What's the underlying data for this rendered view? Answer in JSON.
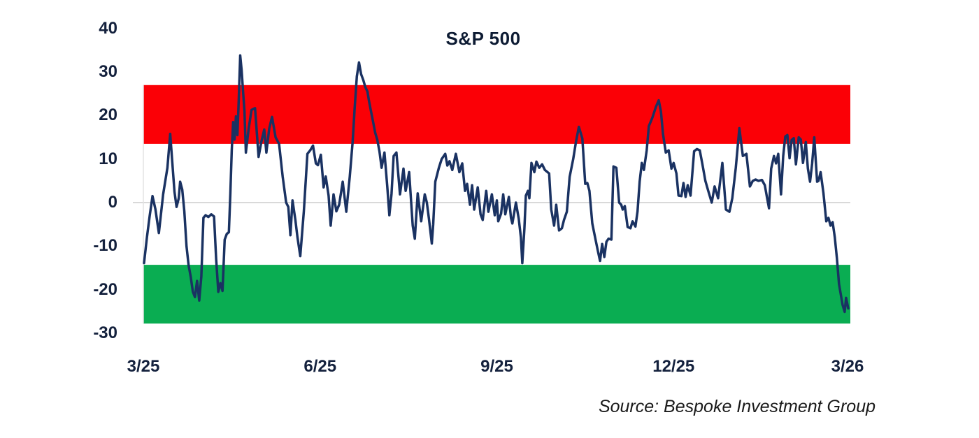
{
  "chart": {
    "title": "S&P 500",
    "source": "Source: Bespoke Investment Group"
  },
  "chart_data": {
    "type": "line",
    "title": "S&P 500",
    "x_axis": {
      "tick_labels": [
        "3/25",
        "6/25",
        "9/25",
        "12/25",
        "3/26"
      ],
      "tick_positions": [
        0,
        0.25,
        0.5,
        0.75,
        0.996
      ]
    },
    "y_axis": {
      "ticks": [
        40,
        30,
        20,
        10,
        0,
        -10,
        -20,
        -30
      ],
      "ylim": [
        -30,
        40
      ]
    },
    "bands": [
      {
        "name": "upper-red-band",
        "from": 13.5,
        "to": 27.0,
        "color": "#fb0006"
      },
      {
        "name": "lower-green-band",
        "from": -27.8,
        "to": -14.3,
        "color": "#0aad52"
      }
    ],
    "gridlines": [
      0
    ],
    "gridline_color": "#d9d9d9",
    "axis_line_color": "#e4e4e4",
    "line_color": "#1a3262",
    "tick_text_color": "#14213d",
    "series": [
      {
        "name": "S&P 500",
        "x_format": "fraction_of_axis_0_to_1",
        "points": [
          [
            0.001,
            -13.9
          ],
          [
            0.005,
            -8.0
          ],
          [
            0.009,
            -3.0
          ],
          [
            0.013,
            1.5
          ],
          [
            0.017,
            -1.5
          ],
          [
            0.022,
            -7.0
          ],
          [
            0.028,
            1.9
          ],
          [
            0.034,
            8.0
          ],
          [
            0.038,
            15.8
          ],
          [
            0.041,
            9.0
          ],
          [
            0.044,
            2.5
          ],
          [
            0.047,
            -1.0
          ],
          [
            0.05,
            1.0
          ],
          [
            0.052,
            4.8
          ],
          [
            0.055,
            3.0
          ],
          [
            0.058,
            -2.0
          ],
          [
            0.061,
            -10.0
          ],
          [
            0.064,
            -14.4
          ],
          [
            0.067,
            -17.0
          ],
          [
            0.07,
            -20.5
          ],
          [
            0.073,
            -21.7
          ],
          [
            0.076,
            -18.0
          ],
          [
            0.079,
            -22.5
          ],
          [
            0.082,
            -17.0
          ],
          [
            0.085,
            -3.5
          ],
          [
            0.088,
            -2.9
          ],
          [
            0.092,
            -3.3
          ],
          [
            0.096,
            -2.7
          ],
          [
            0.1,
            -3.2
          ],
          [
            0.103,
            -13.0
          ],
          [
            0.106,
            -20.5
          ],
          [
            0.109,
            -18.5
          ],
          [
            0.112,
            -20.3
          ],
          [
            0.115,
            -8.5
          ],
          [
            0.118,
            -7.2
          ],
          [
            0.121,
            -6.8
          ],
          [
            0.123,
            2.0
          ],
          [
            0.125,
            12.0
          ],
          [
            0.127,
            18.5
          ],
          [
            0.129,
            14.5
          ],
          [
            0.131,
            19.8
          ],
          [
            0.133,
            15.5
          ],
          [
            0.135,
            24.0
          ],
          [
            0.137,
            33.8
          ],
          [
            0.139,
            30.5
          ],
          [
            0.141,
            25.5
          ],
          [
            0.143,
            21.0
          ],
          [
            0.145,
            11.5
          ],
          [
            0.149,
            17.0
          ],
          [
            0.153,
            21.3
          ],
          [
            0.158,
            21.7
          ],
          [
            0.163,
            10.5
          ],
          [
            0.167,
            14.0
          ],
          [
            0.171,
            16.8
          ],
          [
            0.174,
            11.5
          ],
          [
            0.178,
            17.0
          ],
          [
            0.182,
            19.7
          ],
          [
            0.187,
            15.0
          ],
          [
            0.192,
            13.5
          ],
          [
            0.197,
            6.0
          ],
          [
            0.202,
            0.0
          ],
          [
            0.205,
            -1.0
          ],
          [
            0.208,
            -7.5
          ],
          [
            0.211,
            0.5
          ],
          [
            0.215,
            -4.0
          ],
          [
            0.218,
            -8.0
          ],
          [
            0.222,
            -12.3
          ],
          [
            0.227,
            -2.0
          ],
          [
            0.232,
            11.2
          ],
          [
            0.236,
            12.0
          ],
          [
            0.24,
            13.1
          ],
          [
            0.244,
            9.0
          ],
          [
            0.247,
            8.6
          ],
          [
            0.251,
            11.0
          ],
          [
            0.255,
            3.5
          ],
          [
            0.258,
            6.0
          ],
          [
            0.262,
            1.6
          ],
          [
            0.265,
            -5.3
          ],
          [
            0.269,
            1.9
          ],
          [
            0.273,
            -2.0
          ],
          [
            0.277,
            -0.5
          ],
          [
            0.282,
            4.8
          ],
          [
            0.287,
            -2.1
          ],
          [
            0.292,
            6.0
          ],
          [
            0.296,
            14.0
          ],
          [
            0.299,
            22.0
          ],
          [
            0.302,
            29.0
          ],
          [
            0.305,
            32.2
          ],
          [
            0.308,
            29.5
          ],
          [
            0.311,
            28.2
          ],
          [
            0.314,
            26.5
          ],
          [
            0.317,
            25.5
          ],
          [
            0.319,
            23.5
          ],
          [
            0.322,
            21.0
          ],
          [
            0.325,
            18.5
          ],
          [
            0.328,
            16.0
          ],
          [
            0.331,
            14.4
          ],
          [
            0.334,
            11.7
          ],
          [
            0.337,
            8.0
          ],
          [
            0.341,
            11.5
          ],
          [
            0.345,
            3.7
          ],
          [
            0.348,
            -2.9
          ],
          [
            0.351,
            2.0
          ],
          [
            0.354,
            10.7
          ],
          [
            0.358,
            11.5
          ],
          [
            0.363,
            1.9
          ],
          [
            0.368,
            7.8
          ],
          [
            0.371,
            2.7
          ],
          [
            0.376,
            7.0
          ],
          [
            0.381,
            -5.3
          ],
          [
            0.384,
            -8.3
          ],
          [
            0.388,
            2.1
          ],
          [
            0.393,
            -4.3
          ],
          [
            0.398,
            1.9
          ],
          [
            0.401,
            0.0
          ],
          [
            0.404,
            -3.7
          ],
          [
            0.408,
            -9.4
          ],
          [
            0.41,
            -5.0
          ],
          [
            0.413,
            4.8
          ],
          [
            0.418,
            8.0
          ],
          [
            0.422,
            10.0
          ],
          [
            0.427,
            11.2
          ],
          [
            0.43,
            8.5
          ],
          [
            0.433,
            9.5
          ],
          [
            0.437,
            7.5
          ],
          [
            0.442,
            11.2
          ],
          [
            0.447,
            7.0
          ],
          [
            0.451,
            9.0
          ],
          [
            0.455,
            2.7
          ],
          [
            0.458,
            4.3
          ],
          [
            0.462,
            -0.5
          ],
          [
            0.465,
            4.0
          ],
          [
            0.468,
            -1.6
          ],
          [
            0.473,
            3.5
          ],
          [
            0.477,
            -2.7
          ],
          [
            0.48,
            -4.0
          ],
          [
            0.485,
            2.7
          ],
          [
            0.488,
            -2.1
          ],
          [
            0.493,
            1.9
          ],
          [
            0.497,
            -2.9
          ],
          [
            0.5,
            0.5
          ],
          [
            0.502,
            -4.3
          ],
          [
            0.506,
            -2.5
          ],
          [
            0.509,
            1.9
          ],
          [
            0.512,
            -2.7
          ],
          [
            0.517,
            1.3
          ],
          [
            0.52,
            -3.5
          ],
          [
            0.522,
            -4.8
          ],
          [
            0.527,
            0.0
          ],
          [
            0.531,
            -3.7
          ],
          [
            0.534,
            -8.0
          ],
          [
            0.536,
            -13.9
          ],
          [
            0.539,
            -6.0
          ],
          [
            0.541,
            1.6
          ],
          [
            0.544,
            2.7
          ],
          [
            0.546,
            1.0
          ],
          [
            0.549,
            9.1
          ],
          [
            0.553,
            7.0
          ],
          [
            0.556,
            9.4
          ],
          [
            0.56,
            8.0
          ],
          [
            0.564,
            8.8
          ],
          [
            0.568,
            7.5
          ],
          [
            0.574,
            6.7
          ],
          [
            0.577,
            -1.6
          ],
          [
            0.581,
            -5.3
          ],
          [
            0.584,
            -0.5
          ],
          [
            0.588,
            -6.4
          ],
          [
            0.592,
            -5.9
          ],
          [
            0.595,
            -4.0
          ],
          [
            0.599,
            -2.1
          ],
          [
            0.603,
            5.9
          ],
          [
            0.608,
            10.0
          ],
          [
            0.612,
            14.0
          ],
          [
            0.616,
            17.4
          ],
          [
            0.621,
            14.7
          ],
          [
            0.625,
            4.3
          ],
          [
            0.628,
            4.5
          ],
          [
            0.631,
            2.7
          ],
          [
            0.635,
            -4.8
          ],
          [
            0.639,
            -8.0
          ],
          [
            0.643,
            -11.2
          ],
          [
            0.646,
            -13.4
          ],
          [
            0.649,
            -9.5
          ],
          [
            0.652,
            -12.5
          ],
          [
            0.655,
            -9.0
          ],
          [
            0.658,
            -8.3
          ],
          [
            0.662,
            -8.5
          ],
          [
            0.665,
            8.3
          ],
          [
            0.669,
            8.0
          ],
          [
            0.673,
            0.0
          ],
          [
            0.676,
            -0.5
          ],
          [
            0.678,
            -1.6
          ],
          [
            0.681,
            -0.8
          ],
          [
            0.685,
            -5.6
          ],
          [
            0.689,
            -5.9
          ],
          [
            0.692,
            -4.3
          ],
          [
            0.696,
            -5.5
          ],
          [
            0.699,
            -2.0
          ],
          [
            0.702,
            4.8
          ],
          [
            0.705,
            9.1
          ],
          [
            0.708,
            7.5
          ],
          [
            0.712,
            12.0
          ],
          [
            0.715,
            17.6
          ],
          [
            0.72,
            19.5
          ],
          [
            0.725,
            22.0
          ],
          [
            0.729,
            23.5
          ],
          [
            0.732,
            21.0
          ],
          [
            0.735,
            15.8
          ],
          [
            0.739,
            11.5
          ],
          [
            0.743,
            12.0
          ],
          [
            0.747,
            7.8
          ],
          [
            0.75,
            9.1
          ],
          [
            0.754,
            6.7
          ],
          [
            0.757,
            1.6
          ],
          [
            0.761,
            1.5
          ],
          [
            0.764,
            4.5
          ],
          [
            0.767,
            1.3
          ],
          [
            0.77,
            4.0
          ],
          [
            0.774,
            1.6
          ],
          [
            0.779,
            11.8
          ],
          [
            0.783,
            12.3
          ],
          [
            0.787,
            12.0
          ],
          [
            0.791,
            8.6
          ],
          [
            0.795,
            5.0
          ],
          [
            0.799,
            2.7
          ],
          [
            0.804,
            0.0
          ],
          [
            0.808,
            3.7
          ],
          [
            0.813,
            1.0
          ],
          [
            0.819,
            9.1
          ],
          [
            0.824,
            -1.6
          ],
          [
            0.829,
            -2.1
          ],
          [
            0.833,
            1.0
          ],
          [
            0.838,
            8.0
          ],
          [
            0.843,
            17.1
          ],
          [
            0.848,
            10.7
          ],
          [
            0.853,
            11.2
          ],
          [
            0.858,
            3.7
          ],
          [
            0.862,
            5.0
          ],
          [
            0.866,
            5.3
          ],
          [
            0.87,
            5.0
          ],
          [
            0.875,
            5.2
          ],
          [
            0.879,
            4.0
          ],
          [
            0.882,
            1.3
          ],
          [
            0.885,
            -1.3
          ],
          [
            0.888,
            7.8
          ],
          [
            0.892,
            10.7
          ],
          [
            0.895,
            9.0
          ],
          [
            0.898,
            11.2
          ],
          [
            0.902,
            1.9
          ],
          [
            0.905,
            10.7
          ],
          [
            0.908,
            15.2
          ],
          [
            0.911,
            15.5
          ],
          [
            0.914,
            10.2
          ],
          [
            0.917,
            14.4
          ],
          [
            0.92,
            14.8
          ],
          [
            0.923,
            8.8
          ],
          [
            0.927,
            15.0
          ],
          [
            0.93,
            14.5
          ],
          [
            0.933,
            9.1
          ],
          [
            0.937,
            13.9
          ],
          [
            0.94,
            7.8
          ],
          [
            0.943,
            4.8
          ],
          [
            0.946,
            9.0
          ],
          [
            0.949,
            15.0
          ],
          [
            0.953,
            4.8
          ],
          [
            0.955,
            5.0
          ],
          [
            0.958,
            7.0
          ],
          [
            0.962,
            2.1
          ],
          [
            0.966,
            -4.3
          ],
          [
            0.969,
            -3.5
          ],
          [
            0.972,
            -5.3
          ],
          [
            0.975,
            -4.5
          ],
          [
            0.978,
            -8.0
          ],
          [
            0.981,
            -12.8
          ],
          [
            0.984,
            -18.7
          ],
          [
            0.989,
            -23.5
          ],
          [
            0.992,
            -25.1
          ],
          [
            0.994,
            -21.9
          ],
          [
            0.997,
            -24.3
          ]
        ]
      }
    ]
  }
}
